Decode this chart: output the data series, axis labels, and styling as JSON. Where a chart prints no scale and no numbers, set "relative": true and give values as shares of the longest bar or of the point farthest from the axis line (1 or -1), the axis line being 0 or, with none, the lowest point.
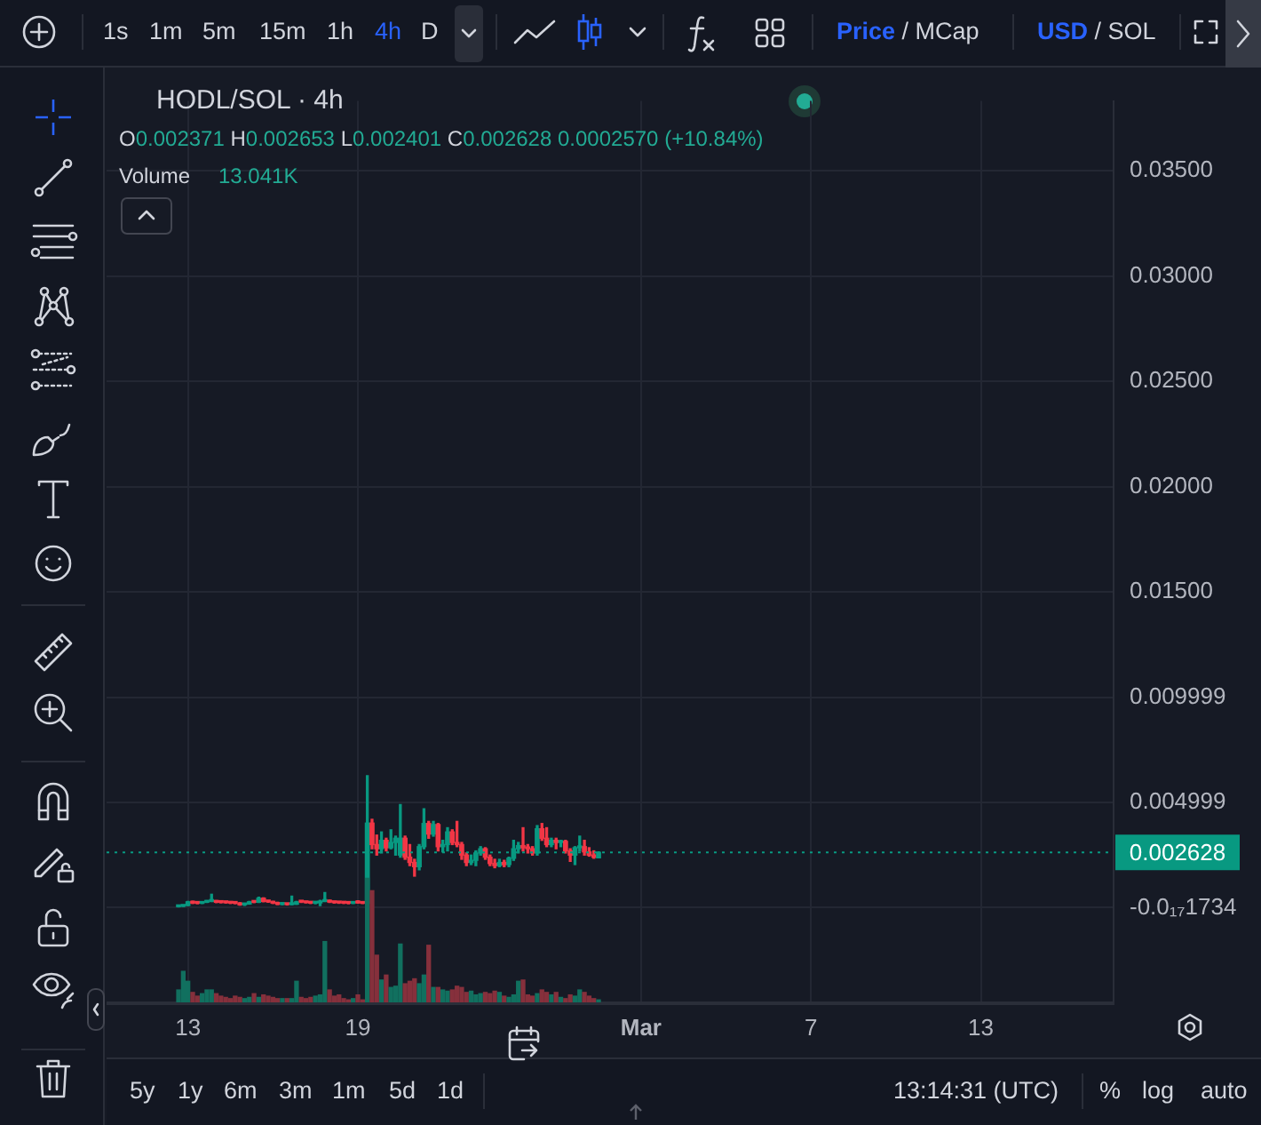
{
  "chart_data": [
    {
      "type": "candlestick",
      "title": "HODL/SOL · 4h",
      "annotations": [
        "O0.002371 H0.002653 L0.002401 C0.002628 0.0002570 (+10.84%)",
        "1s",
        "1m",
        "5m",
        "15m",
        "1h",
        "4h",
        "D",
        "Price / MCap",
        "USD / SOL",
        "5y",
        "1y",
        "6m",
        "3m",
        "1m",
        "5d",
        "1d",
        "13:14:31 (UTC)",
        "%",
        "log",
        "auto"
      ],
      "x": [
        "--02-12T16:00",
        "--02-12T20:00",
        "--02-13T00:00",
        "--02-13T04:00",
        "--02-13T08:00",
        "--02-13T12:00",
        "--02-13T16:00",
        "--02-13T20:00",
        "--02-14T00:00",
        "--02-14T04:00",
        "--02-14T08:00",
        "--02-14T12:00",
        "--02-14T16:00",
        "--02-14T20:00",
        "--02-15T00:00",
        "--02-15T04:00",
        "--02-15T08:00",
        "--02-15T12:00",
        "--02-15T16:00",
        "--02-15T20:00",
        "--02-16T00:00",
        "--02-16T04:00",
        "--02-16T08:00",
        "--02-16T12:00",
        "--02-16T16:00",
        "--02-16T20:00",
        "--02-17T00:00",
        "--02-17T04:00",
        "--02-17T08:00",
        "--02-17T12:00",
        "--02-17T16:00",
        "--02-17T20:00",
        "--02-18T00:00",
        "--02-18T04:00",
        "--02-18T08:00",
        "--02-18T12:00",
        "--02-18T16:00",
        "--02-18T20:00",
        "--02-19T00:00",
        "--02-19T04:00",
        "--02-19T08:00",
        "--02-19T12:00",
        "--02-19T16:00",
        "--02-19T20:00",
        "--02-20T00:00",
        "--02-20T04:00",
        "--02-20T08:00",
        "--02-20T12:00",
        "--02-20T16:00",
        "--02-20T20:00",
        "--02-21T00:00",
        "--02-21T04:00",
        "--02-21T08:00",
        "--02-21T12:00",
        "--02-21T16:00",
        "--02-21T20:00",
        "--02-22T00:00",
        "--02-22T04:00",
        "--02-22T08:00",
        "--02-22T12:00",
        "--02-22T16:00",
        "--02-22T20:00",
        "--02-23T00:00",
        "--02-23T04:00",
        "--02-23T08:00",
        "--02-23T12:00",
        "--02-23T16:00",
        "--02-23T20:00",
        "--02-24T00:00",
        "--02-24T04:00",
        "--02-24T08:00",
        "--02-24T12:00",
        "--02-24T16:00",
        "--02-24T20:00",
        "--02-25T00:00",
        "--02-25T04:00",
        "--02-25T08:00",
        "--02-25T12:00",
        "--02-25T16:00",
        "--02-25T20:00",
        "--02-26T00:00",
        "--02-26T04:00",
        "--02-26T08:00",
        "--02-26T12:00",
        "--02-26T16:00",
        "--02-26T20:00",
        "--02-27T00:00",
        "--02-27T04:00",
        "--02-27T08:00",
        "--02-27T12:00"
      ],
      "ohlc": [
        [
          5e-05,
          8e-05,
          4e-05,
          7e-05
        ],
        [
          7e-05,
          0.00012,
          6e-05,
          0.00011
        ],
        [
          0.00011,
          0.0003,
          0.0001,
          0.00028
        ],
        [
          0.00028,
          0.00031,
          0.0002,
          0.00022
        ],
        [
          0.00022,
          0.00026,
          0.00019,
          0.00021
        ],
        [
          0.00021,
          0.00028,
          0.0002,
          0.00026
        ],
        [
          0.00026,
          0.00034,
          0.00025,
          0.0003
        ],
        [
          0.0003,
          0.00064,
          0.00029,
          0.00031
        ],
        [
          0.00031,
          0.00034,
          0.00024,
          0.00026
        ],
        [
          0.00026,
          0.0003,
          0.00023,
          0.00025
        ],
        [
          0.00025,
          0.00029,
          0.00022,
          0.00024
        ],
        [
          0.00024,
          0.00027,
          0.0002,
          0.00022
        ],
        [
          0.00022,
          0.00025,
          0.00019,
          0.00021
        ],
        [
          0.00021,
          0.00024,
          0.00012,
          0.00014
        ],
        [
          0.00014,
          0.0002,
          0.00011,
          0.00018
        ],
        [
          0.00018,
          0.0003,
          0.00017,
          0.00028
        ],
        [
          0.00028,
          0.00031,
          0.00024,
          0.00026
        ],
        [
          0.00026,
          0.0005,
          0.00025,
          0.00045
        ],
        [
          0.00045,
          0.00047,
          0.00028,
          0.0003
        ],
        [
          0.0003,
          0.00033,
          0.00026,
          0.00028
        ],
        [
          0.00028,
          0.0003,
          0.0002,
          0.00022
        ],
        [
          0.00022,
          0.00026,
          0.00015,
          0.00016
        ],
        [
          0.00016,
          0.00019,
          0.00014,
          0.00017
        ],
        [
          0.00017,
          0.0002,
          0.00013,
          0.00015
        ],
        [
          0.00015,
          0.00055,
          0.00014,
          0.00017
        ],
        [
          0.00017,
          0.0003,
          0.00016,
          0.00028
        ],
        [
          0.00028,
          0.00031,
          0.00025,
          0.00027
        ],
        [
          0.00027,
          0.00029,
          0.00023,
          0.00024
        ],
        [
          0.00024,
          0.00027,
          0.0002,
          0.00022
        ],
        [
          0.00022,
          0.00025,
          0.00019,
          0.00023
        ],
        [
          0.00023,
          0.00035,
          0.0001,
          0.0003
        ],
        [
          0.0003,
          0.00072,
          0.00029,
          0.00033
        ],
        [
          0.00033,
          0.00036,
          0.00025,
          0.00027
        ],
        [
          0.00027,
          0.0003,
          0.00022,
          0.00024
        ],
        [
          0.00024,
          0.00027,
          0.00021,
          0.00023
        ],
        [
          0.00023,
          0.00026,
          0.0002,
          0.00022
        ],
        [
          0.00022,
          0.00025,
          0.00019,
          0.00021
        ],
        [
          0.00021,
          0.00026,
          0.0002,
          0.00024
        ],
        [
          0.00024,
          0.00033,
          0.00022,
          0.00023
        ],
        [
          0.00023,
          0.00027,
          0.0002,
          0.00021
        ],
        [
          0.00021,
          0.00627,
          0.0002,
          0.00402
        ],
        [
          0.00402,
          0.0042,
          0.0028,
          0.003
        ],
        [
          0.003,
          0.00345,
          0.0025,
          0.0028
        ],
        [
          0.0028,
          0.0036,
          0.0026,
          0.0032
        ],
        [
          0.0032,
          0.0033,
          0.0027,
          0.00285
        ],
        [
          0.00285,
          0.0037,
          0.0028,
          0.0031
        ],
        [
          0.0031,
          0.0034,
          0.0025,
          0.0033
        ],
        [
          0.0025,
          0.0049,
          0.0024,
          0.0033
        ],
        [
          0.0033,
          0.0034,
          0.0023,
          0.0024
        ],
        [
          0.0024,
          0.003,
          0.002,
          0.00215
        ],
        [
          0.00215,
          0.0023,
          0.0015,
          0.00195
        ],
        [
          0.00195,
          0.003,
          0.0018,
          0.0029
        ],
        [
          0.0029,
          0.0047,
          0.0028,
          0.004
        ],
        [
          0.004,
          0.0041,
          0.0033,
          0.0035
        ],
        [
          0.0035,
          0.0041,
          0.0034,
          0.00395
        ],
        [
          0.00395,
          0.004,
          0.0027,
          0.0029
        ],
        [
          0.0029,
          0.0032,
          0.00265,
          0.003
        ],
        [
          0.003,
          0.0038,
          0.0027,
          0.0036
        ],
        [
          0.0036,
          0.0037,
          0.003,
          0.0031
        ],
        [
          0.0031,
          0.0041,
          0.0029,
          0.003
        ],
        [
          0.003,
          0.0031,
          0.0023,
          0.0025
        ],
        [
          0.0025,
          0.0026,
          0.002,
          0.00215
        ],
        [
          0.00215,
          0.0025,
          0.00205,
          0.00225
        ],
        [
          0.00225,
          0.0027,
          0.002,
          0.0026
        ],
        [
          0.0026,
          0.0029,
          0.0025,
          0.0028
        ],
        [
          0.0028,
          0.00285,
          0.0023,
          0.0024
        ],
        [
          0.0024,
          0.0025,
          0.002,
          0.0021
        ],
        [
          0.0021,
          0.0023,
          0.0019,
          0.002
        ],
        [
          0.002,
          0.0023,
          0.00195,
          0.00215
        ],
        [
          0.00215,
          0.00225,
          0.00195,
          0.00205
        ],
        [
          0.00205,
          0.0024,
          0.00195,
          0.00235
        ],
        [
          0.00235,
          0.0032,
          0.00225,
          0.0028
        ],
        [
          0.0028,
          0.0031,
          0.0026,
          0.00295
        ],
        [
          0.00295,
          0.0038,
          0.0027,
          0.00285
        ],
        [
          0.00285,
          0.003,
          0.0026,
          0.0028
        ],
        [
          0.0028,
          0.0029,
          0.0025,
          0.0026
        ],
        [
          0.0026,
          0.0039,
          0.0025,
          0.00375
        ],
        [
          0.00375,
          0.004,
          0.0032,
          0.0033
        ],
        [
          0.0033,
          0.0038,
          0.0029,
          0.003
        ],
        [
          0.003,
          0.0033,
          0.0029,
          0.0032
        ],
        [
          0.0032,
          0.0033,
          0.0028,
          0.0031
        ],
        [
          0.0031,
          0.0032,
          0.0029,
          0.00315
        ],
        [
          0.00315,
          0.0032,
          0.0026,
          0.0027
        ],
        [
          0.0027,
          0.0028,
          0.0022,
          0.0025
        ],
        [
          0.0025,
          0.0029,
          0.00205,
          0.00285
        ],
        [
          0.00285,
          0.0034,
          0.0027,
          0.0029
        ],
        [
          0.0029,
          0.0032,
          0.0025,
          0.00265
        ],
        [
          0.00265,
          0.00285,
          0.00245,
          0.0025
        ],
        [
          0.0025,
          0.0027,
          0.00235,
          0.0024
        ],
        [
          0.002371,
          0.002653,
          0.002371,
          0.002628
        ]
      ],
      "colors": [
        "#089981",
        "#089981",
        "#089981",
        "#f23645",
        "#f23645",
        "#089981",
        "#089981",
        "#089981",
        "#f23645",
        "#f23645",
        "#f23645",
        "#f23645",
        "#f23645",
        "#f23645",
        "#089981",
        "#089981",
        "#f23645",
        "#089981",
        "#f23645",
        "#f23645",
        "#f23645",
        "#f23645",
        "#089981",
        "#f23645",
        "#089981",
        "#089981",
        "#f23645",
        "#f23645",
        "#f23645",
        "#089981",
        "#089981",
        "#089981",
        "#f23645",
        "#f23645",
        "#f23645",
        "#f23645",
        "#f23645",
        "#089981",
        "#f23645",
        "#f23645",
        "#089981",
        "#f23645",
        "#f23645",
        "#089981",
        "#f23645",
        "#089981",
        "#089981",
        "#089981",
        "#f23645",
        "#f23645",
        "#f23645",
        "#089981",
        "#089981",
        "#f23645",
        "#089981",
        "#f23645",
        "#089981",
        "#089981",
        "#f23645",
        "#f23645",
        "#f23645",
        "#f23645",
        "#089981",
        "#089981",
        "#089981",
        "#f23645",
        "#f23645",
        "#f23645",
        "#089981",
        "#f23645",
        "#089981",
        "#089981",
        "#089981",
        "#f23645",
        "#f23645",
        "#f23645",
        "#089981",
        "#f23645",
        "#f23645",
        "#089981",
        "#f23645",
        "#089981",
        "#f23645",
        "#f23645",
        "#089981",
        "#089981",
        "#f23645",
        "#f23645",
        "#f23645",
        "#089981"
      ],
      "xlim": [
        "--02-10T03:00",
        "--03-17T16:30"
      ],
      "xticks": [
        {
          "value": "--02-13",
          "label": "13"
        },
        {
          "value": "--02-19",
          "label": "19"
        },
        {
          "value": "--03-01",
          "label": "Mar"
        },
        {
          "value": "--03-07",
          "label": "7"
        },
        {
          "value": "--03-13",
          "label": "13"
        }
      ],
      "ylim": [
        -0.00458,
        0.03832
      ],
      "yticks": [
        {
          "value": 0.035,
          "label": "0.03500"
        },
        {
          "value": 0.03,
          "label": "0.03000"
        },
        {
          "value": 0.025,
          "label": "0.02500"
        },
        {
          "value": 0.02,
          "label": "0.02000"
        },
        {
          "value": 0.015,
          "label": "0.01500"
        },
        0.009999,
        0.004999,
        {
          "value": -1.734e-19,
          "label": "-0.0₁₇1734"
        }
      ],
      "ref_lines": [
        {
          "axis": "y",
          "value": 0.002628,
          "label": "0.002628",
          "color": "#089981",
          "line_style": "dotted"
        }
      ],
      "grid": true,
      "legend": false
    },
    {
      "type": "bar",
      "title": "Volume",
      "annotations": [
        "13.041K"
      ],
      "relative": true,
      "x": [
        "--02-12T16:00",
        "--02-12T20:00",
        "--02-13T00:00",
        "--02-13T04:00",
        "--02-13T08:00",
        "--02-13T12:00",
        "--02-13T16:00",
        "--02-13T20:00",
        "--02-14T00:00",
        "--02-14T04:00",
        "--02-14T08:00",
        "--02-14T12:00",
        "--02-14T16:00",
        "--02-14T20:00",
        "--02-15T00:00",
        "--02-15T04:00",
        "--02-15T08:00",
        "--02-15T12:00",
        "--02-15T16:00",
        "--02-15T20:00",
        "--02-16T00:00",
        "--02-16T04:00",
        "--02-16T08:00",
        "--02-16T12:00",
        "--02-16T16:00",
        "--02-16T20:00",
        "--02-17T00:00",
        "--02-17T04:00",
        "--02-17T08:00",
        "--02-17T12:00",
        "--02-17T16:00",
        "--02-17T20:00",
        "--02-18T00:00",
        "--02-18T04:00",
        "--02-18T08:00",
        "--02-18T12:00",
        "--02-18T16:00",
        "--02-18T20:00",
        "--02-19T00:00",
        "--02-19T04:00",
        "--02-19T08:00",
        "--02-19T12:00",
        "--02-19T16:00",
        "--02-19T20:00",
        "--02-20T00:00",
        "--02-20T04:00",
        "--02-20T08:00",
        "--02-20T12:00",
        "--02-20T16:00",
        "--02-20T20:00",
        "--02-21T00:00",
        "--02-21T04:00",
        "--02-21T08:00",
        "--02-21T12:00",
        "--02-21T16:00",
        "--02-21T20:00",
        "--02-22T00:00",
        "--02-22T04:00",
        "--02-22T08:00",
        "--02-22T12:00",
        "--02-22T16:00",
        "--02-22T20:00",
        "--02-23T00:00",
        "--02-23T04:00",
        "--02-23T08:00",
        "--02-23T12:00",
        "--02-23T16:00",
        "--02-23T20:00",
        "--02-24T00:00",
        "--02-24T04:00",
        "--02-24T08:00",
        "--02-24T12:00",
        "--02-24T16:00",
        "--02-24T20:00",
        "--02-25T00:00",
        "--02-25T04:00",
        "--02-25T08:00",
        "--02-25T12:00",
        "--02-25T16:00",
        "--02-25T20:00",
        "--02-26T00:00",
        "--02-26T04:00",
        "--02-26T08:00",
        "--02-26T12:00",
        "--02-26T16:00",
        "--02-26T20:00",
        "--02-27T00:00",
        "--02-27T04:00",
        "--02-27T08:00",
        "--02-27T12:00"
      ],
      "values": [
        0.1,
        0.25,
        0.17,
        0.08,
        0.05,
        0.07,
        0.1,
        0.1,
        0.07,
        0.05,
        0.04,
        0.03,
        0.05,
        0.04,
        0.03,
        0.04,
        0.07,
        0.04,
        0.06,
        0.05,
        0.04,
        0.03,
        0.03,
        0.03,
        0.03,
        0.17,
        0.04,
        0.03,
        0.04,
        0.05,
        0.06,
        0.49,
        0.1,
        0.05,
        0.06,
        0.03,
        0.02,
        0.03,
        0.06,
        0.02,
        1,
        0.9,
        0.38,
        0.18,
        0.22,
        0.12,
        0.13,
        0.47,
        0.15,
        0.17,
        0.19,
        0.15,
        0.22,
        0.46,
        0.12,
        0.12,
        0.1,
        0.09,
        0.1,
        0.13,
        0.12,
        0.08,
        0.09,
        0.06,
        0.07,
        0.08,
        0.07,
        0.09,
        0.08,
        0.05,
        0.04,
        0.06,
        0.17,
        0.18,
        0.06,
        0.05,
        0.07,
        0.1,
        0.08,
        0.06,
        0.08,
        0.04,
        0.03,
        0.06,
        0.05,
        0.1,
        0.08,
        0.05,
        0.03,
        0.02
      ],
      "colors": [
        "#11705f",
        "#11705f",
        "#11705f",
        "#86303c",
        "#86303c",
        "#11705f",
        "#11705f",
        "#11705f",
        "#86303c",
        "#86303c",
        "#86303c",
        "#86303c",
        "#86303c",
        "#86303c",
        "#11705f",
        "#11705f",
        "#86303c",
        "#11705f",
        "#86303c",
        "#86303c",
        "#86303c",
        "#86303c",
        "#11705f",
        "#86303c",
        "#11705f",
        "#11705f",
        "#86303c",
        "#86303c",
        "#86303c",
        "#11705f",
        "#11705f",
        "#11705f",
        "#86303c",
        "#86303c",
        "#86303c",
        "#86303c",
        "#86303c",
        "#11705f",
        "#86303c",
        "#86303c",
        "#11705f",
        "#86303c",
        "#86303c",
        "#11705f",
        "#86303c",
        "#11705f",
        "#11705f",
        "#11705f",
        "#86303c",
        "#86303c",
        "#86303c",
        "#11705f",
        "#11705f",
        "#86303c",
        "#11705f",
        "#86303c",
        "#11705f",
        "#11705f",
        "#86303c",
        "#86303c",
        "#86303c",
        "#86303c",
        "#11705f",
        "#11705f",
        "#11705f",
        "#86303c",
        "#86303c",
        "#86303c",
        "#11705f",
        "#86303c",
        "#11705f",
        "#11705f",
        "#11705f",
        "#86303c",
        "#86303c",
        "#86303c",
        "#11705f",
        "#86303c",
        "#86303c",
        "#11705f",
        "#86303c",
        "#11705f",
        "#86303c",
        "#86303c",
        "#11705f",
        "#11705f",
        "#86303c",
        "#86303c",
        "#86303c",
        "#11705f"
      ],
      "xlim": [
        "--02-10T03:00",
        "--03-17T16:30"
      ],
      "legend": false
    }
  ]
}
